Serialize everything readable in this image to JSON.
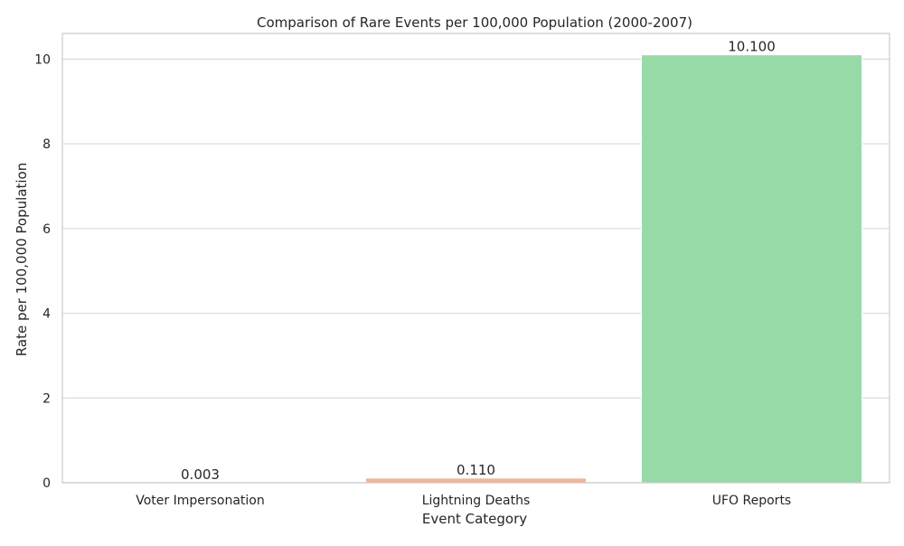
{
  "chart_data": {
    "type": "bar",
    "title": "Comparison of Rare Events per 100,000 Population (2000-2007)",
    "xlabel": "Event Category",
    "ylabel": "Rate per 100,000 Population",
    "categories": [
      "Voter Impersonation",
      "Lightning Deaths",
      "UFO Reports"
    ],
    "values": [
      0.003,
      0.11,
      10.1
    ],
    "value_labels": [
      "0.003",
      "0.110",
      "10.100"
    ],
    "colors": [
      "#8fb4e6",
      "#f4b495",
      "#97d9a7"
    ],
    "ylim": [
      0,
      10.605
    ],
    "yticks": [
      0,
      2,
      4,
      6,
      8,
      10
    ],
    "grid": true,
    "grid_axis": "y",
    "legend": "none"
  }
}
